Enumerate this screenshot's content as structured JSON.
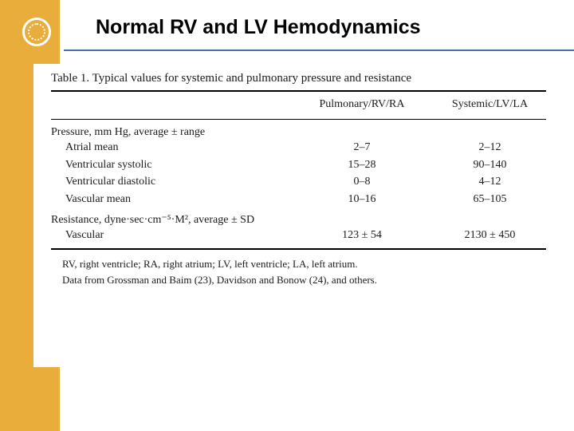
{
  "slide": {
    "title": "Normal RV and LV Hemodynamics",
    "accent_color": "#e8ad3a",
    "underline_color": "#4a6fa5",
    "seal_border": "#ffffff"
  },
  "table": {
    "caption": "Table 1. Typical values for systemic and pulmonary pressure and resistance",
    "col_headers": {
      "a": "Pulmonary/RV/RA",
      "b": "Systemic/LV/LA"
    },
    "section1": {
      "heading": "Pressure, mm Hg, average ± range",
      "rows": [
        {
          "label": "Atrial mean",
          "a": "2–7",
          "b": "2–12"
        },
        {
          "label": "Ventricular systolic",
          "a": "15–28",
          "b": "90–140"
        },
        {
          "label": "Ventricular diastolic",
          "a": "0–8",
          "b": "4–12"
        },
        {
          "label": "Vascular mean",
          "a": "10–16",
          "b": "65–105"
        }
      ]
    },
    "section2": {
      "heading": "Resistance, dyne·sec·cm⁻⁵·M², average ± SD",
      "rows": [
        {
          "label": "Vascular",
          "a": "123 ± 54",
          "b": "2130 ± 450"
        }
      ]
    },
    "footnotes": [
      "RV, right ventricle; RA, right atrium; LV, left ventricle; LA, left atrium.",
      "Data from Grossman and Baim (23), Davidson and Bonow (24), and others."
    ]
  }
}
